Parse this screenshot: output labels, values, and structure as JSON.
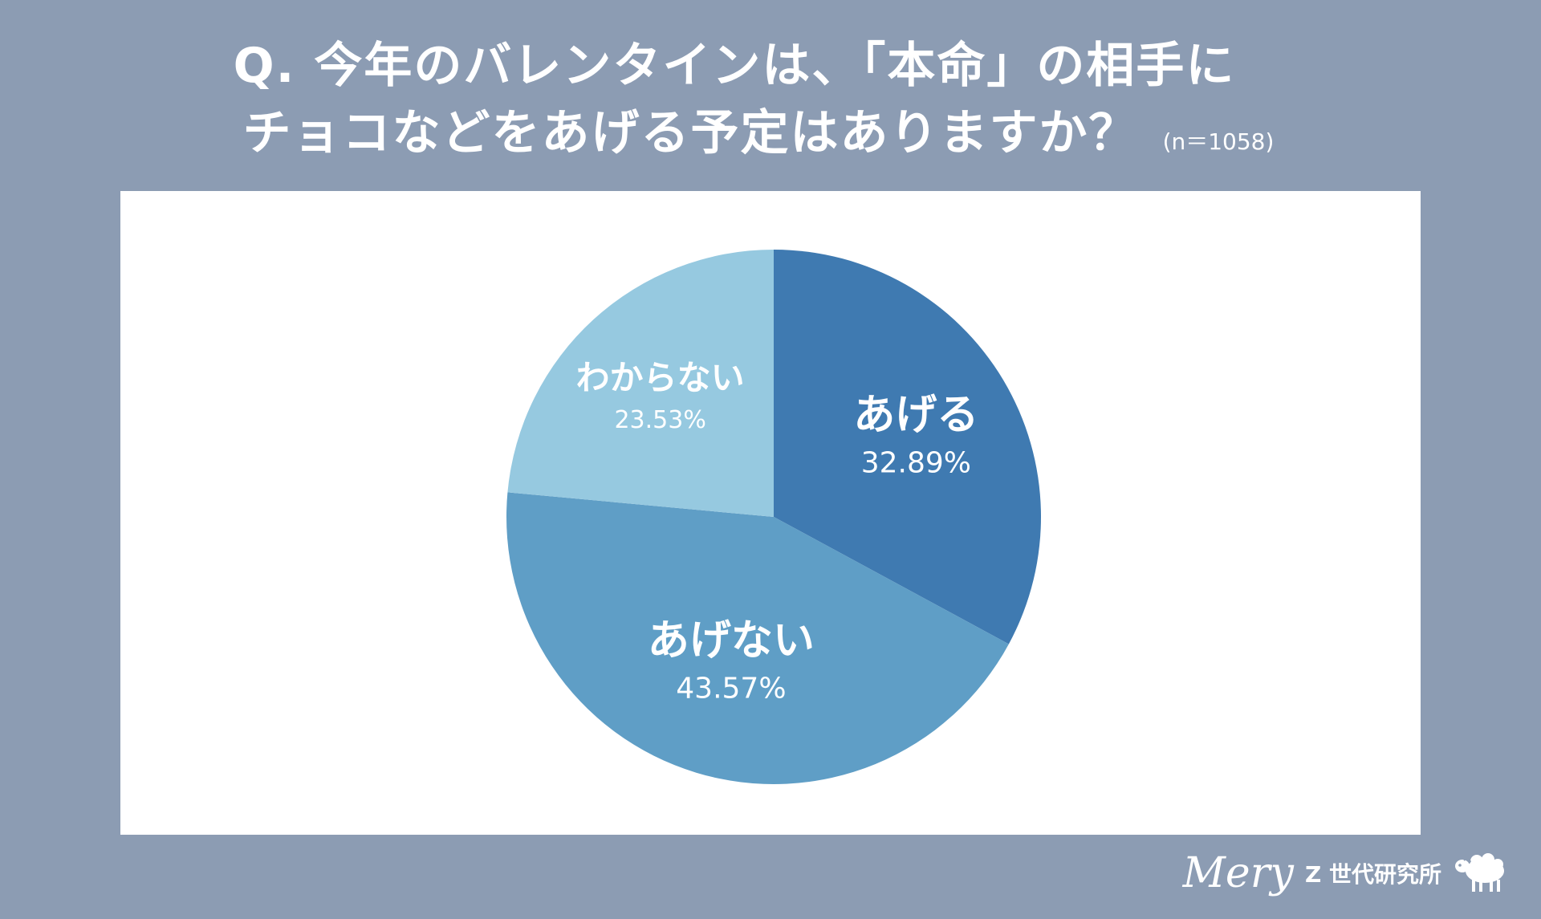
{
  "title": {
    "line1": "Q. 今年のバレンタインは、「本命」の相手に",
    "line2": "チョコなどをあげる予定はありますか？",
    "sample_size": "(n＝1058)"
  },
  "chart_data": {
    "type": "pie",
    "slices": [
      {
        "label": "あげる",
        "value": 32.89,
        "display": "32.89%",
        "color": "#3f7ab1"
      },
      {
        "label": "あげない",
        "value": 43.57,
        "display": "43.57%",
        "color": "#5f9ec6"
      },
      {
        "label": "わからない",
        "value": 23.53,
        "display": "23.53%",
        "color": "#96c9e0"
      }
    ],
    "start_angle": "12 o'clock",
    "direction": "clockwise"
  },
  "footer": {
    "brand": "Mery",
    "lab": "Z 世代研究所",
    "icon": "sheep-icon"
  },
  "colors": {
    "background": "#8c9cb3",
    "panel": "#ffffff",
    "text": "#ffffff"
  }
}
